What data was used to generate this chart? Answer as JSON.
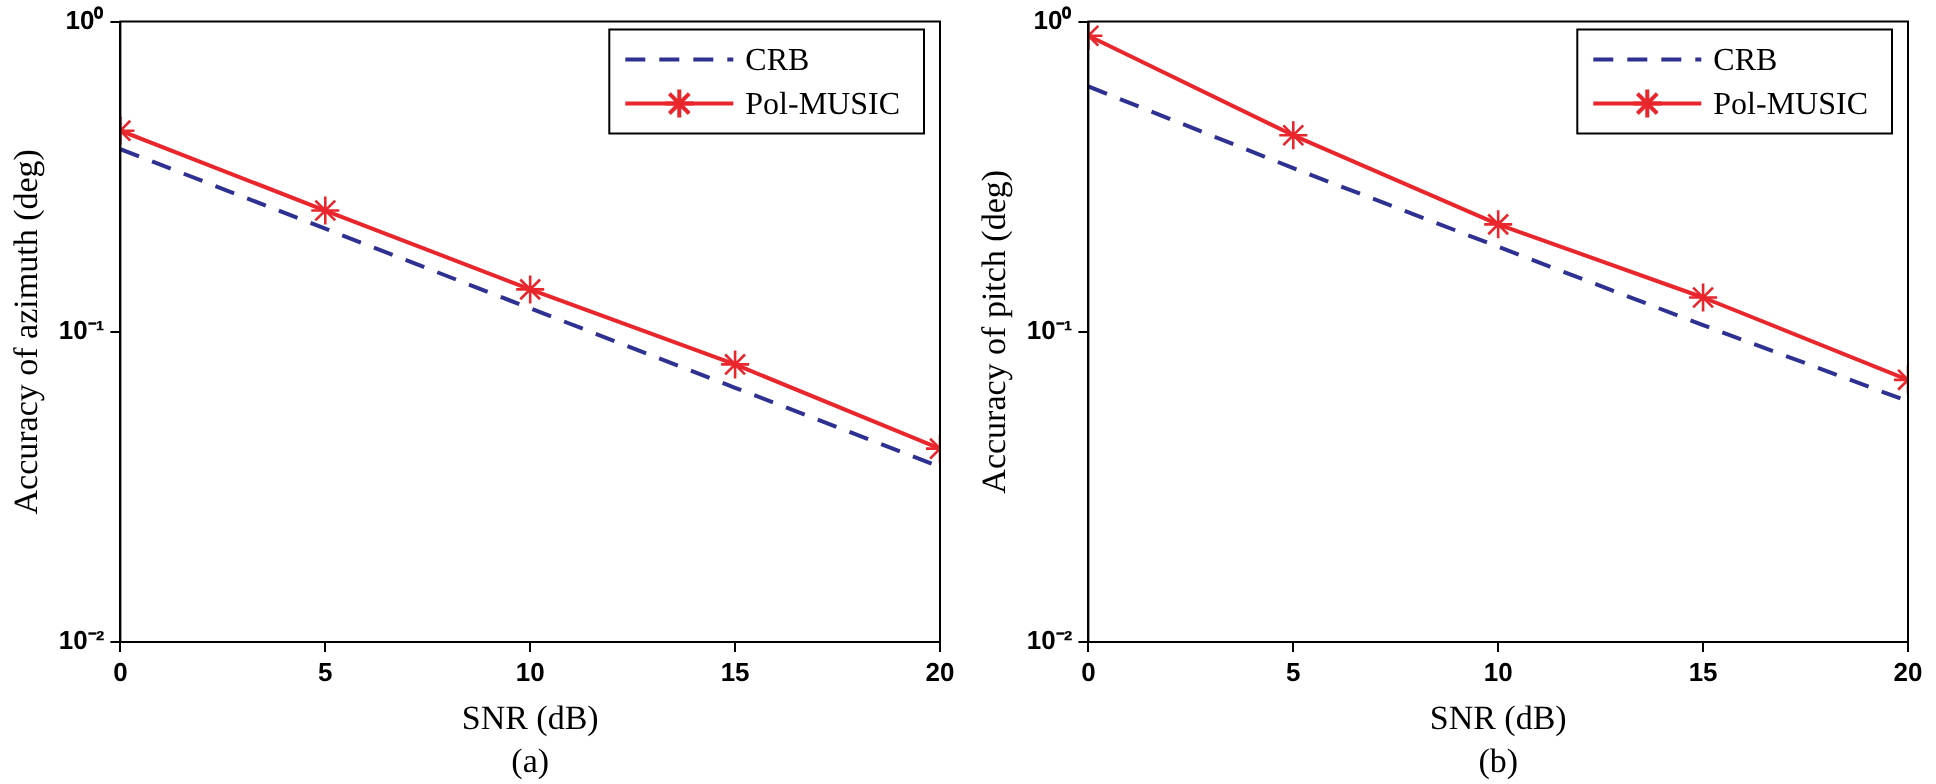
{
  "chart_data": [
    {
      "type": "line",
      "xlabel": "SNR (dB)",
      "ylabel": "Accuracy of azimuth (deg)",
      "annotations": [
        "(a)"
      ],
      "x": [
        0,
        5,
        10,
        15,
        20
      ],
      "xlim": [
        0,
        20
      ],
      "xticks": [
        0,
        5,
        10,
        15,
        20
      ],
      "ylim": [
        0.01,
        1
      ],
      "yticks": [
        {
          "value": 0.01,
          "label": "10⁻²"
        },
        {
          "value": 0.1,
          "label": "10⁻¹"
        },
        {
          "value": 1,
          "label": "10⁰"
        }
      ],
      "log": "y",
      "grid": false,
      "legend": "top right",
      "series": [
        {
          "name": "CRB",
          "color": "#2e3192",
          "line_style": "dashed",
          "marker": "none",
          "values": [
            0.388,
            0.215,
            0.119,
            0.066,
            0.0367
          ]
        },
        {
          "name": "Pol-MUSIC",
          "color": "#e8262c",
          "line_style": "solid",
          "marker": "cross",
          "values": [
            0.445,
            0.246,
            0.137,
            0.0785,
            0.042
          ]
        }
      ]
    },
    {
      "type": "line",
      "xlabel": "SNR (dB)",
      "ylabel": "Accuracy of pitch (deg)",
      "annotations": [
        "(b)"
      ],
      "x": [
        0,
        5,
        10,
        15,
        20
      ],
      "xlim": [
        0,
        20
      ],
      "xticks": [
        0,
        5,
        10,
        15,
        20
      ],
      "ylim": [
        0.01,
        1
      ],
      "yticks": [
        {
          "value": 0.01,
          "label": "10⁻²"
        },
        {
          "value": 0.1,
          "label": "10⁻¹"
        },
        {
          "value": 1,
          "label": "10⁰"
        }
      ],
      "log": "y",
      "grid": false,
      "legend": "top right",
      "series": [
        {
          "name": "CRB",
          "color": "#2e3192",
          "line_style": "dashed",
          "marker": "none",
          "values": [
            0.618,
            0.337,
            0.188,
            0.105,
            0.0597
          ]
        },
        {
          "name": "Pol-MUSIC",
          "color": "#e8262c",
          "line_style": "solid",
          "marker": "cross",
          "values": [
            0.9,
            0.43,
            0.222,
            0.129,
            0.07
          ]
        }
      ]
    }
  ]
}
